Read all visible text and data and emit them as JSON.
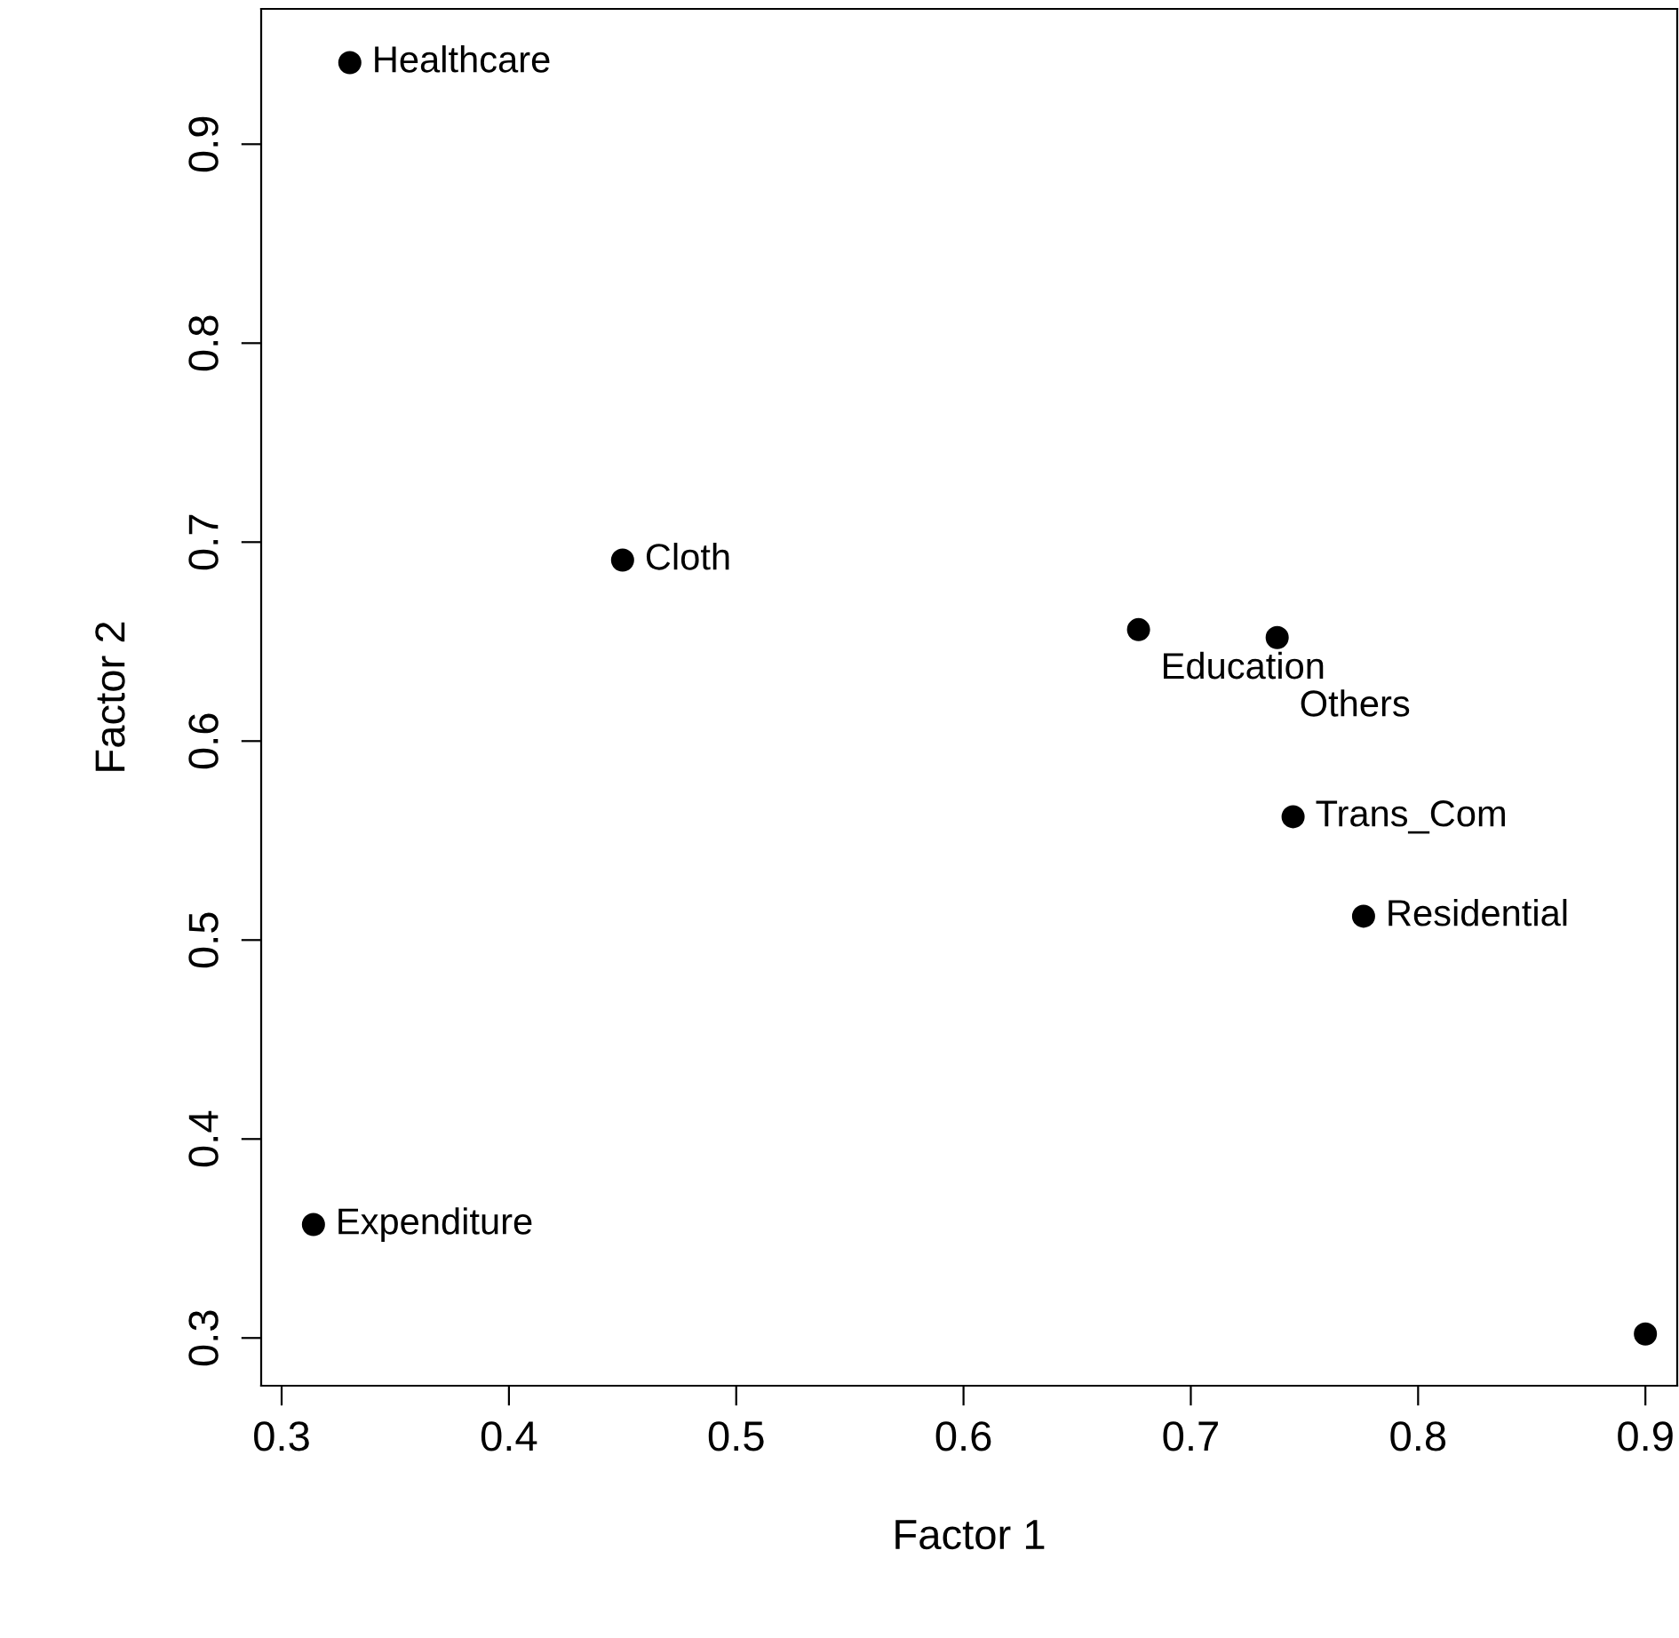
{
  "chart_data": {
    "type": "scatter",
    "xlabel": "Factor 1",
    "ylabel": "Factor 2",
    "x": [
      0.33,
      0.45,
      0.677,
      0.738,
      0.745,
      0.776,
      0.314,
      0.9
    ],
    "values": [
      0.941,
      0.691,
      0.656,
      0.652,
      0.562,
      0.512,
      0.357,
      0.302
    ],
    "color": "#000000",
    "marker": "circle",
    "grid": false,
    "legend": false,
    "xlim": [
      0.291,
      0.914
    ],
    "ylim": [
      0.276,
      0.968
    ],
    "xticks": [
      0.3,
      0.4,
      0.5,
      0.6,
      0.7,
      0.8,
      0.9
    ],
    "yticks": [
      0.3,
      0.4,
      0.5,
      0.6,
      0.7,
      0.8,
      0.9
    ],
    "annotations": [
      {
        "text": "Healthcare",
        "x": 0.33,
        "y": 0.941
      },
      {
        "text": "Cloth",
        "x": 0.45,
        "y": 0.691
      },
      {
        "text": "Education",
        "x": 0.677,
        "y": 0.656
      },
      {
        "text": "Others",
        "x": 0.738,
        "y": 0.652
      },
      {
        "text": "Trans_Com",
        "x": 0.745,
        "y": 0.562
      },
      {
        "text": "Residential",
        "x": 0.776,
        "y": 0.512
      },
      {
        "text": "Expenditure",
        "x": 0.314,
        "y": 0.357
      }
    ]
  }
}
